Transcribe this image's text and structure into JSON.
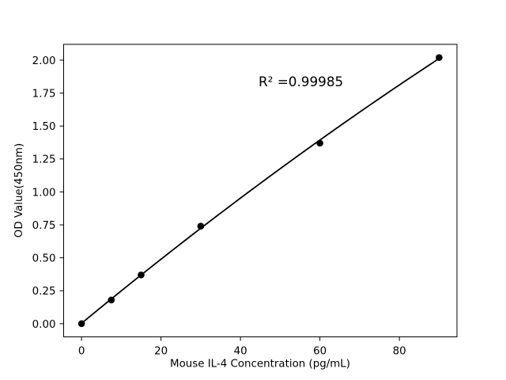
{
  "chart_data": {
    "type": "scatter",
    "title": "",
    "xlabel": "Mouse IL-4 Concentration (pg/mL)",
    "ylabel": "OD Value(450nm)",
    "annotation": "R² =0.99985",
    "r_squared": 0.99985,
    "x": [
      0,
      7.5,
      15,
      30,
      60,
      90
    ],
    "y": [
      0.0,
      0.18,
      0.37,
      0.74,
      1.37,
      2.02
    ],
    "fit_curve": {
      "type": "quadratic",
      "a": 0.0027,
      "b": 0.02489,
      "c": -2.845e-05,
      "x_start": 0,
      "x_end": 90
    },
    "xticks": [
      "0",
      "20",
      "40",
      "60",
      "80"
    ],
    "yticks": [
      "0.00",
      "0.25",
      "0.50",
      "0.75",
      "1.00",
      "1.25",
      "1.50",
      "1.75",
      "2.00"
    ],
    "xlim": [
      -4.5,
      94.5
    ],
    "ylim": [
      -0.1,
      2.12
    ],
    "grid": false,
    "legend": null,
    "colors": {
      "background": "#ffffff",
      "spine": "#000000",
      "marker": "#000000",
      "line": "#000000",
      "text": "#000000"
    }
  }
}
